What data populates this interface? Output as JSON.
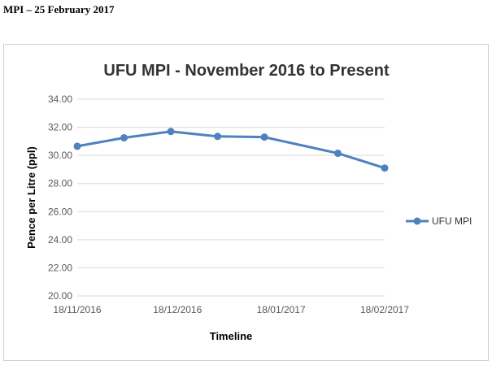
{
  "heading": "MPI – 25 February 2017",
  "chart_data": {
    "type": "line",
    "title": "UFU MPI - November 2016 to Present",
    "xlabel": "Timeline",
    "ylabel": "Pence per Litre (ppl)",
    "ylim": [
      20,
      34
    ],
    "yticks": [
      "20.00",
      "22.00",
      "24.00",
      "26.00",
      "28.00",
      "30.00",
      "32.00",
      "34.00"
    ],
    "xticks": [
      "18/11/2016",
      "18/12/2016",
      "18/01/2017",
      "18/02/2017"
    ],
    "x": [
      "18/11/2016",
      "2/12/2016",
      "16/12/2016",
      "30/12/2016",
      "13/01/2017",
      "4/02/2017",
      "18/02/2017"
    ],
    "series": [
      {
        "name": "UFU MPI",
        "color": "#4f81bd",
        "values": [
          30.65,
          31.25,
          31.7,
          31.35,
          31.3,
          30.15,
          29.1
        ]
      }
    ],
    "legend_position": "right",
    "grid": true
  }
}
